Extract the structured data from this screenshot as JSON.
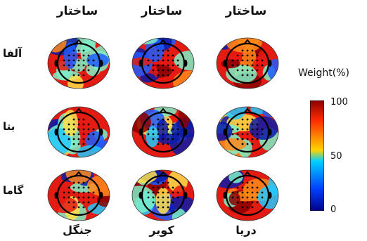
{
  "columns": {
    "headers": [
      "ساختار",
      "ساختار",
      "ساختار"
    ],
    "footers": [
      "جنگل",
      "کویر",
      "دریا"
    ]
  },
  "rows": [
    "آلفا",
    "بتا",
    "گاما"
  ],
  "colorbar": {
    "title": "Weight(%)",
    "ticks": [
      "100",
      "50",
      "0"
    ],
    "colors": [
      "#8b0000",
      "#ff2a00",
      "#ffd200",
      "#00d0ff",
      "#0040ff",
      "#00008b"
    ]
  }
}
